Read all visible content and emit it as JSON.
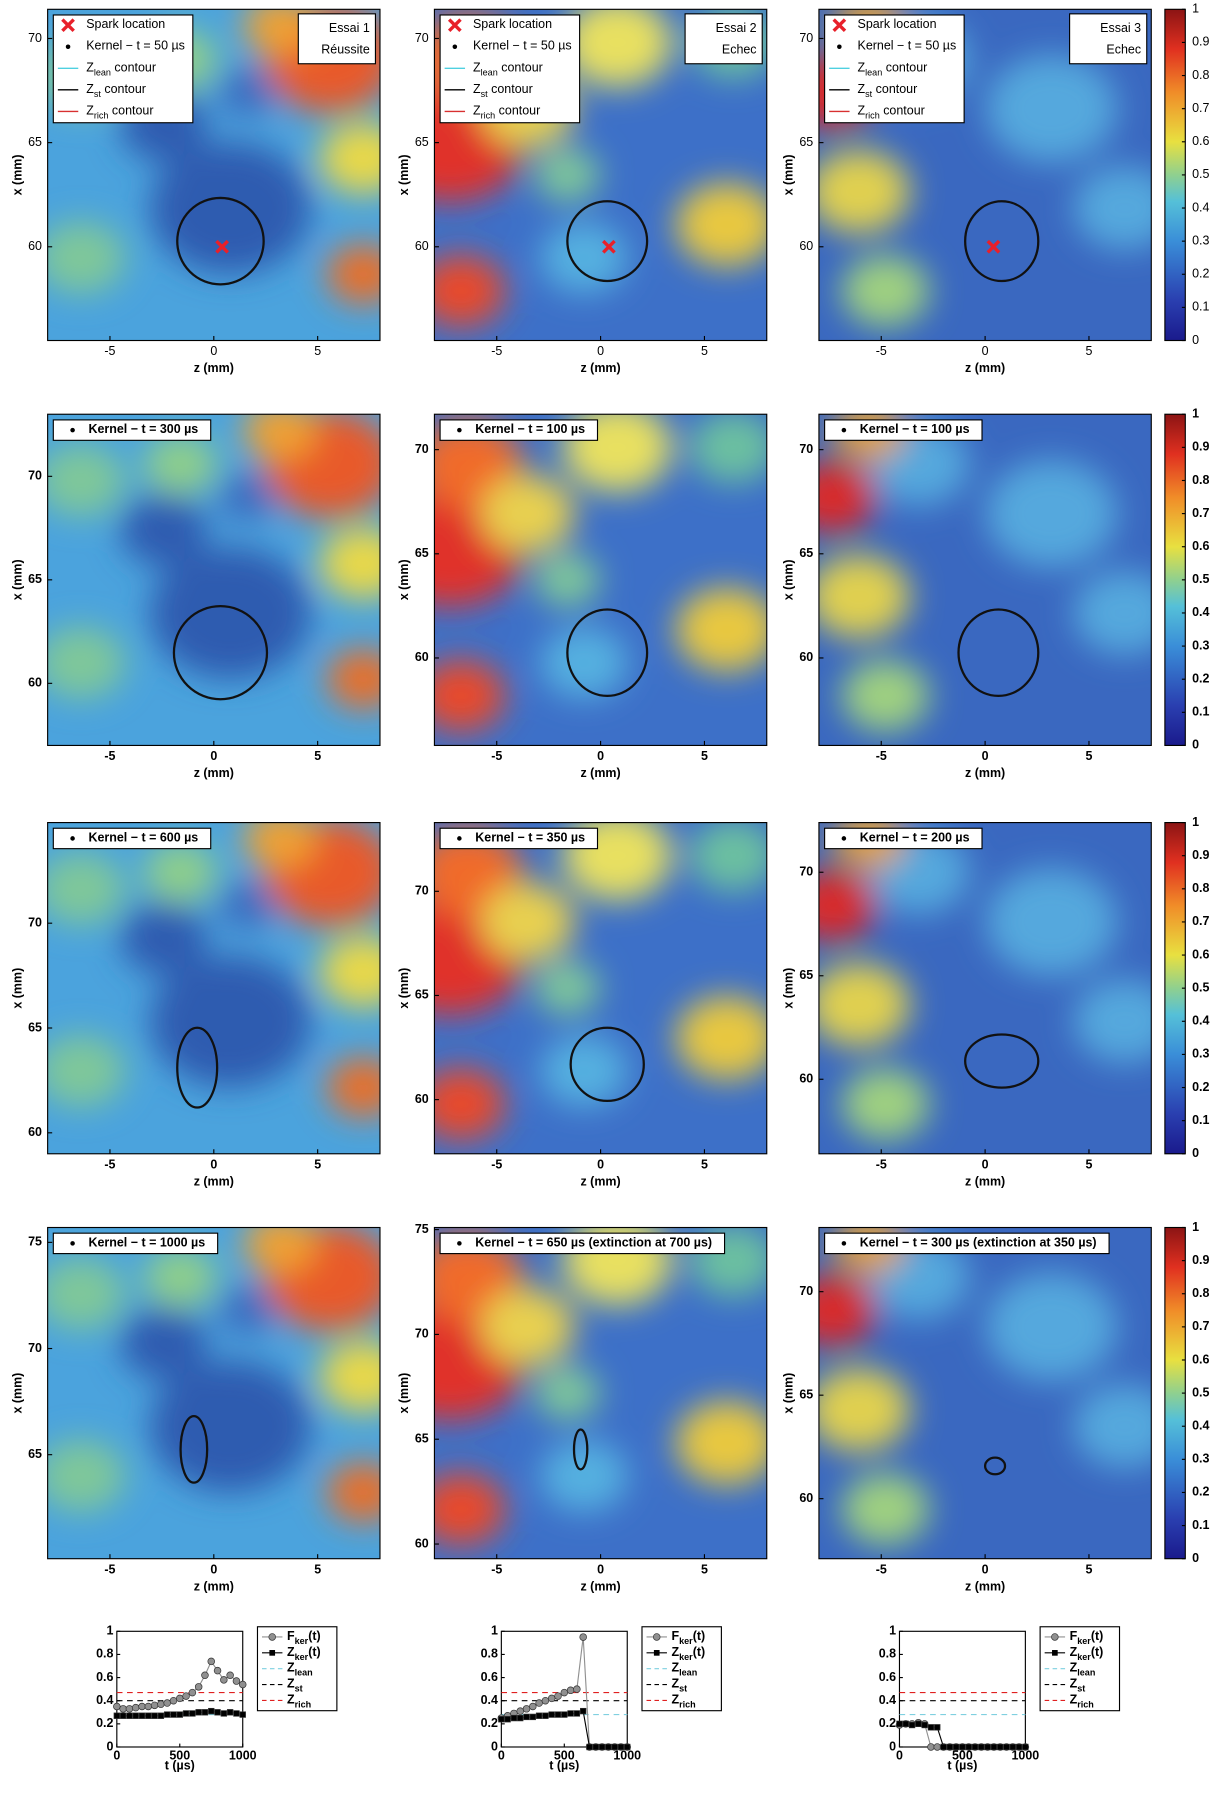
{
  "chart_data": [
    {
      "type": "heatmap",
      "title": "Essai 1",
      "subtitle": "Réussite",
      "xlabel": "z (mm)",
      "ylabel": "x (mm)",
      "xlim": [
        -8,
        8
      ],
      "ylim": [
        55.5,
        71.4
      ],
      "xticks": [
        -5,
        0,
        5
      ],
      "yticks": [
        60,
        65,
        70
      ],
      "spark": [
        0.4,
        60
      ],
      "legend": [
        {
          "text": [
            "Spark location"
          ],
          "marker": "x",
          "color": "#e8202a"
        },
        {
          "text": [
            "Kernel − t = 50 µs"
          ],
          "marker": "dot",
          "color": "#000000"
        },
        {
          "text": [
            "Z",
            "lean",
            " contour"
          ],
          "marker": "line",
          "color": "#4fd0e0"
        },
        {
          "text": [
            "Z",
            "st",
            " contour"
          ],
          "marker": "line",
          "color": "#000000"
        },
        {
          "text": [
            "Z",
            "rich",
            " contour"
          ],
          "marker": "line",
          "color": "#d83030"
        }
      ]
    },
    {
      "type": "heatmap",
      "title": "Essai 2",
      "subtitle": "Echec",
      "xlabel": "z (mm)",
      "ylabel": "x (mm)",
      "xlim": [
        -8,
        8
      ],
      "ylim": [
        55.5,
        71.4
      ],
      "xticks": [
        -5,
        0,
        5
      ],
      "yticks": [
        60,
        65,
        70
      ],
      "spark": [
        0.4,
        60
      ],
      "legend": [
        {
          "text": [
            "Spark location"
          ],
          "marker": "x",
          "color": "#e8202a"
        },
        {
          "text": [
            "Kernel − t = 50 µs"
          ],
          "marker": "dot",
          "color": "#000000"
        },
        {
          "text": [
            "Z",
            "lean",
            " contour"
          ],
          "marker": "line",
          "color": "#4fd0e0"
        },
        {
          "text": [
            "Z",
            "st",
            " contour"
          ],
          "marker": "line",
          "color": "#000000"
        },
        {
          "text": [
            "Z",
            "rich",
            " contour"
          ],
          "marker": "line",
          "color": "#d83030"
        }
      ]
    },
    {
      "type": "heatmap",
      "title": "Essai 3",
      "subtitle": "Echec",
      "xlabel": "z (mm)",
      "ylabel": "x (mm)",
      "xlim": [
        -8,
        8
      ],
      "ylim": [
        55.5,
        71.4
      ],
      "xticks": [
        -5,
        0,
        5
      ],
      "yticks": [
        60,
        65,
        70
      ],
      "spark": [
        0.4,
        60
      ],
      "legend": [
        {
          "text": [
            "Spark location"
          ],
          "marker": "x",
          "color": "#e8202a"
        },
        {
          "text": [
            "Kernel − t = 50 µs"
          ],
          "marker": "dot",
          "color": "#000000"
        },
        {
          "text": [
            "Z",
            "lean",
            " contour"
          ],
          "marker": "line",
          "color": "#4fd0e0"
        },
        {
          "text": [
            "Z",
            "st",
            " contour"
          ],
          "marker": "line",
          "color": "#000000"
        },
        {
          "text": [
            "Z",
            "rich",
            " contour"
          ],
          "marker": "line",
          "color": "#d83030"
        }
      ],
      "colorbar": {
        "lim": [
          0,
          1
        ],
        "ticks": [
          0,
          0.1,
          0.2,
          0.3,
          0.4,
          0.5,
          0.6,
          0.7,
          0.8,
          0.9,
          1
        ]
      }
    },
    {
      "type": "heatmap",
      "xlabel": "z (mm)",
      "ylabel": "x (mm)",
      "xlim": [
        -8,
        8
      ],
      "ylim": [
        57,
        73
      ],
      "xticks": [
        -5,
        0,
        5
      ],
      "yticks": [
        60,
        65,
        70
      ],
      "legend": [
        {
          "text": [
            "Kernel − t = 300 µs"
          ],
          "marker": "dot",
          "color": "#000000"
        }
      ]
    },
    {
      "type": "heatmap",
      "xlabel": "z (mm)",
      "ylabel": "x (mm)",
      "xlim": [
        -8,
        8
      ],
      "ylim": [
        55.8,
        71.7
      ],
      "xticks": [
        -5,
        0,
        5
      ],
      "yticks": [
        60,
        65,
        70
      ],
      "legend": [
        {
          "text": [
            "Kernel − t = 100 µs"
          ],
          "marker": "dot",
          "color": "#000000"
        }
      ]
    },
    {
      "type": "heatmap",
      "xlabel": "z (mm)",
      "ylabel": "x (mm)",
      "xlim": [
        -8,
        8
      ],
      "ylim": [
        55.8,
        71.7
      ],
      "xticks": [
        -5,
        0,
        5
      ],
      "yticks": [
        60,
        65,
        70
      ],
      "legend": [
        {
          "text": [
            "Kernel − t = 100 µs"
          ],
          "marker": "dot",
          "color": "#000000"
        }
      ],
      "colorbar": {
        "lim": [
          0,
          1
        ],
        "ticks": [
          0,
          0.1,
          0.2,
          0.3,
          0.4,
          0.5,
          0.6,
          0.7,
          0.8,
          0.9,
          1
        ]
      }
    },
    {
      "type": "heatmap",
      "xlabel": "z (mm)",
      "ylabel": "x (mm)",
      "xlim": [
        -8,
        8
      ],
      "ylim": [
        59,
        74.8
      ],
      "xticks": [
        -5,
        0,
        5
      ],
      "yticks": [
        60,
        65,
        70
      ],
      "legend": [
        {
          "text": [
            "Kernel − t = 600 µs"
          ],
          "marker": "dot",
          "color": "#000000"
        }
      ]
    },
    {
      "type": "heatmap",
      "xlabel": "z (mm)",
      "ylabel": "x (mm)",
      "xlim": [
        -8,
        8
      ],
      "ylim": [
        57.4,
        73.3
      ],
      "xticks": [
        -5,
        0,
        5
      ],
      "yticks": [
        60,
        65,
        70
      ],
      "legend": [
        {
          "text": [
            "Kernel − t = 350 µs"
          ],
          "marker": "dot",
          "color": "#000000"
        }
      ]
    },
    {
      "type": "heatmap",
      "xlabel": "z (mm)",
      "ylabel": "x (mm)",
      "xlim": [
        -8,
        8
      ],
      "ylim": [
        56.4,
        72.4
      ],
      "xticks": [
        -5,
        0,
        5
      ],
      "yticks": [
        60,
        65,
        70
      ],
      "legend": [
        {
          "text": [
            "Kernel − t = 200 µs"
          ],
          "marker": "dot",
          "color": "#000000"
        }
      ],
      "colorbar": {
        "lim": [
          0,
          1
        ],
        "ticks": [
          0,
          0.1,
          0.2,
          0.3,
          0.4,
          0.5,
          0.6,
          0.7,
          0.8,
          0.9,
          1
        ]
      }
    },
    {
      "type": "heatmap",
      "xlabel": "z (mm)",
      "ylabel": "x (mm)",
      "xlim": [
        -8,
        8
      ],
      "ylim": [
        60.1,
        75.7
      ],
      "xticks": [
        -5,
        0,
        5
      ],
      "yticks": [
        65,
        70,
        75
      ],
      "legend": [
        {
          "text": [
            "Kernel − t = 1000 µs"
          ],
          "marker": "dot",
          "color": "#000000"
        }
      ]
    },
    {
      "type": "heatmap",
      "xlabel": "z (mm)",
      "ylabel": "x (mm)",
      "xlim": [
        -8,
        8
      ],
      "ylim": [
        59.3,
        75.1
      ],
      "xticks": [
        -5,
        0,
        5
      ],
      "yticks": [
        60,
        65,
        70,
        75
      ],
      "legend": [
        {
          "text": [
            "Kernel − t = 650 µs (extinction at 700 µs)"
          ],
          "marker": "dot",
          "color": "#000000"
        }
      ]
    },
    {
      "type": "heatmap",
      "xlabel": "z (mm)",
      "ylabel": "x (mm)",
      "xlim": [
        -8,
        8
      ],
      "ylim": [
        57.1,
        73.1
      ],
      "xticks": [
        -5,
        0,
        5
      ],
      "yticks": [
        60,
        65,
        70
      ],
      "legend": [
        {
          "text": [
            "Kernel − t = 300 µs (extinction at 350 µs)"
          ],
          "marker": "dot",
          "color": "#000000"
        }
      ],
      "colorbar": {
        "lim": [
          0,
          1
        ],
        "ticks": [
          0,
          0.1,
          0.2,
          0.3,
          0.4,
          0.5,
          0.6,
          0.7,
          0.8,
          0.9,
          1
        ]
      }
    },
    {
      "type": "line",
      "xlabel": "t (µs)",
      "xlim": [
        0,
        1000
      ],
      "ylim": [
        0,
        1
      ],
      "xticks": [
        0,
        500,
        1000
      ],
      "yticks": [
        0,
        0.2,
        0.4,
        0.6,
        0.8,
        1
      ],
      "x": [
        0,
        50,
        100,
        150,
        200,
        250,
        300,
        350,
        400,
        450,
        500,
        550,
        600,
        650,
        700,
        750,
        800,
        850,
        900,
        950,
        1000
      ],
      "series": [
        {
          "name": [
            "F",
            "ker",
            "(t)"
          ],
          "marker": "circle",
          "color": "#909090",
          "values": [
            0.35,
            0.33,
            0.33,
            0.34,
            0.35,
            0.35,
            0.36,
            0.37,
            0.38,
            0.4,
            0.42,
            0.44,
            0.47,
            0.52,
            0.62,
            0.74,
            0.66,
            0.58,
            0.62,
            0.57,
            0.54
          ]
        },
        {
          "name": [
            "Z",
            "ker",
            "(t)"
          ],
          "marker": "square",
          "color": "#000000",
          "values": [
            0.27,
            0.27,
            0.27,
            0.27,
            0.27,
            0.27,
            0.27,
            0.27,
            0.28,
            0.28,
            0.28,
            0.29,
            0.29,
            0.3,
            0.3,
            0.31,
            0.3,
            0.29,
            0.3,
            0.29,
            0.28
          ]
        }
      ],
      "reference_lines": [
        {
          "name": [
            "Z",
            "lean"
          ],
          "color": "#7fd0e0",
          "value": 0.28
        },
        {
          "name": [
            "Z",
            "st"
          ],
          "color": "#000000",
          "value": 0.4
        },
        {
          "name": [
            "Z",
            "rich"
          ],
          "color": "#e02020",
          "value": 0.47
        }
      ]
    },
    {
      "type": "line",
      "xlabel": "t (µs)",
      "xlim": [
        0,
        1000
      ],
      "ylim": [
        0,
        1
      ],
      "xticks": [
        0,
        500,
        1000
      ],
      "yticks": [
        0,
        0.2,
        0.4,
        0.6,
        0.8,
        1
      ],
      "x": [
        0,
        50,
        100,
        150,
        200,
        250,
        300,
        350,
        400,
        450,
        500,
        550,
        600,
        650,
        700,
        750,
        800,
        850,
        900,
        950,
        1000
      ],
      "series": [
        {
          "name": [
            "F",
            "ker",
            "(t)"
          ],
          "marker": "circle",
          "color": "#909090",
          "values": [
            0.25,
            0.27,
            0.29,
            0.31,
            0.33,
            0.35,
            0.38,
            0.4,
            0.42,
            0.44,
            0.47,
            0.49,
            0.5,
            0.95,
            0,
            0,
            0,
            0,
            0,
            0,
            0
          ]
        },
        {
          "name": [
            "Z",
            "ker",
            "(t)"
          ],
          "marker": "square",
          "color": "#000000",
          "values": [
            0.24,
            0.24,
            0.25,
            0.25,
            0.26,
            0.26,
            0.27,
            0.27,
            0.28,
            0.28,
            0.28,
            0.29,
            0.29,
            0.31,
            0,
            0,
            0,
            0,
            0,
            0,
            0
          ]
        }
      ],
      "reference_lines": [
        {
          "name": [
            "Z",
            "lean"
          ],
          "color": "#7fd0e0",
          "value": 0.28
        },
        {
          "name": [
            "Z",
            "st"
          ],
          "color": "#000000",
          "value": 0.4
        },
        {
          "name": [
            "Z",
            "rich"
          ],
          "color": "#e02020",
          "value": 0.47
        }
      ]
    },
    {
      "type": "line",
      "xlabel": "t (µs)",
      "xlim": [
        0,
        1000
      ],
      "ylim": [
        0,
        1
      ],
      "xticks": [
        0,
        500,
        1000
      ],
      "yticks": [
        0,
        0.2,
        0.4,
        0.6,
        0.8,
        1
      ],
      "x": [
        0,
        50,
        100,
        150,
        200,
        250,
        300,
        350,
        400,
        450,
        500,
        550,
        600,
        650,
        700,
        750,
        800,
        850,
        900,
        950,
        1000
      ],
      "series": [
        {
          "name": [
            "F",
            "ker",
            "(t)"
          ],
          "marker": "circle",
          "color": "#909090",
          "values": [
            0.19,
            0.2,
            0.2,
            0.21,
            0.2,
            0,
            0,
            0,
            0,
            0,
            0,
            0,
            0,
            0,
            0,
            0,
            0,
            0,
            0,
            0,
            0
          ]
        },
        {
          "name": [
            "Z",
            "ker",
            "(t)"
          ],
          "marker": "square",
          "color": "#000000",
          "values": [
            0.2,
            0.2,
            0.19,
            0.2,
            0.19,
            0.17,
            0.17,
            0,
            0,
            0,
            0,
            0,
            0,
            0,
            0,
            0,
            0,
            0,
            0,
            0,
            0
          ]
        }
      ],
      "reference_lines": [
        {
          "name": [
            "Z",
            "lean"
          ],
          "color": "#7fd0e0",
          "value": 0.28
        },
        {
          "name": [
            "Z",
            "st"
          ],
          "color": "#000000",
          "value": 0.4
        },
        {
          "name": [
            "Z",
            "rich"
          ],
          "color": "#e02020",
          "value": 0.47
        }
      ]
    }
  ]
}
